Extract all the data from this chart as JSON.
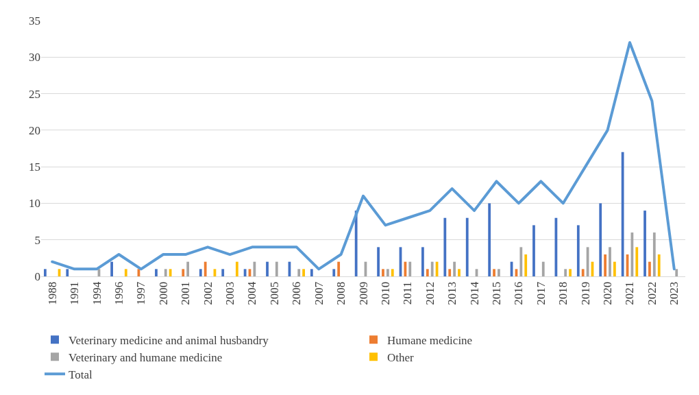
{
  "chart_data": {
    "type": "bar",
    "categories": [
      "1988",
      "1991",
      "1994",
      "1996",
      "1997",
      "2000",
      "2001",
      "2002",
      "2003",
      "2004",
      "2005",
      "2006",
      "2007",
      "2008",
      "2009",
      "2010",
      "2011",
      "2012",
      "2013",
      "2014",
      "2015",
      "2016",
      "2017",
      "2018",
      "2019",
      "2020",
      "2021",
      "2022",
      "2023"
    ],
    "series": [
      {
        "name": "Veterinary medicine and animal husbandry",
        "color": "#4472c4",
        "values": [
          1,
          1,
          0,
          2,
          0,
          1,
          0,
          1,
          1,
          1,
          2,
          2,
          1,
          1,
          9,
          4,
          4,
          4,
          8,
          8,
          10,
          2,
          7,
          8,
          7,
          10,
          17,
          9,
          0
        ]
      },
      {
        "name": "Humane medicine",
        "color": "#ed7d31",
        "values": [
          0,
          0,
          0,
          0,
          1,
          0,
          1,
          2,
          0,
          1,
          0,
          0,
          0,
          2,
          0,
          1,
          2,
          1,
          1,
          0,
          1,
          1,
          0,
          0,
          1,
          3,
          3,
          2,
          0
        ]
      },
      {
        "name": "Veterinary and humane medicine",
        "color": "#a5a5a5",
        "values": [
          0,
          0,
          1,
          0,
          0,
          1,
          2,
          0,
          0,
          2,
          2,
          1,
          0,
          0,
          2,
          1,
          2,
          2,
          2,
          1,
          1,
          4,
          2,
          1,
          4,
          4,
          6,
          6,
          1
        ]
      },
      {
        "name": "Other",
        "color": "#ffc000",
        "values": [
          1,
          0,
          0,
          1,
          0,
          1,
          0,
          1,
          2,
          0,
          0,
          1,
          0,
          0,
          0,
          1,
          0,
          2,
          1,
          0,
          0,
          3,
          0,
          1,
          2,
          2,
          4,
          3,
          0
        ]
      },
      {
        "name": "Total",
        "type": "line",
        "color": "#5b9bd5",
        "values": [
          2,
          1,
          1,
          3,
          1,
          3,
          3,
          4,
          3,
          4,
          4,
          4,
          1,
          3,
          11,
          7,
          8,
          9,
          12,
          9,
          13,
          10,
          13,
          10,
          15,
          20,
          32,
          24,
          1
        ]
      }
    ],
    "ylim": [
      0,
      35
    ],
    "yticks": [
      0,
      5,
      10,
      15,
      20,
      25,
      30,
      35
    ],
    "grid": "y",
    "legend": "bottom",
    "marker": "none",
    "line_style": "solid"
  }
}
